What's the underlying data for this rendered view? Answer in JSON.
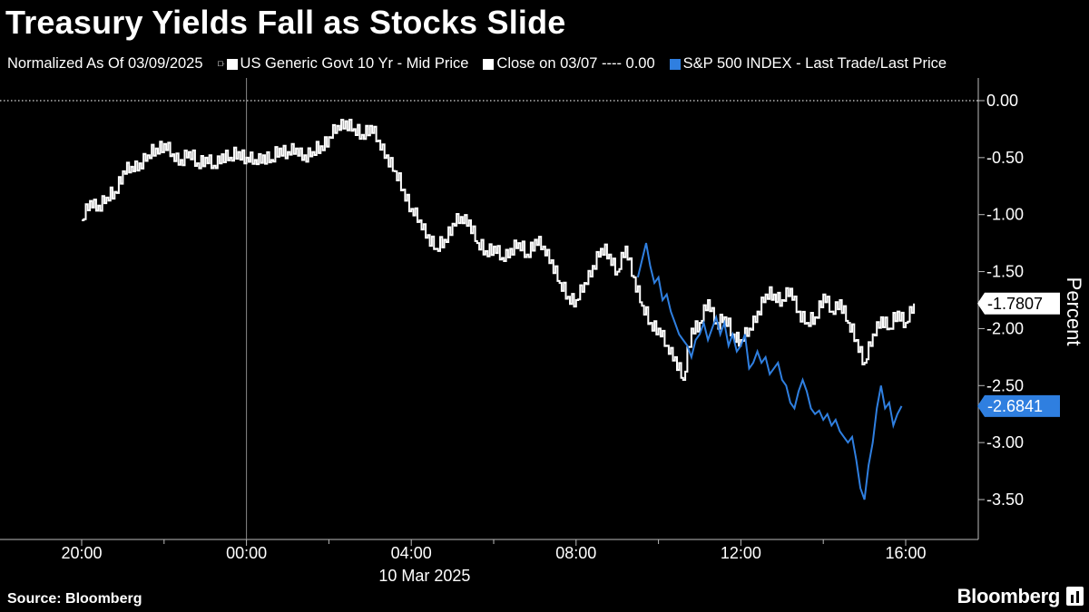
{
  "title": "Treasury Yields Fall as Stocks Slide",
  "legend": {
    "normalized": "Normalized As Of 03/09/2025",
    "items": [
      {
        "label": "US Generic Govt 10 Yr - Mid Price",
        "color": "#ffffff"
      },
      {
        "label": "Close on 03/07 ---- 0.00",
        "color": "#ffffff"
      },
      {
        "label": "S&P 500 INDEX - Last Trade/Last Price",
        "color": "#2f7fe0"
      }
    ]
  },
  "footer": {
    "source": "Source: Bloomberg",
    "brand": "Bloomberg"
  },
  "chart_data": {
    "type": "line",
    "y_axis_label": "Percent",
    "y_axis_side": "right",
    "ylim": [
      -3.85,
      0.2
    ],
    "y_ticks": [
      0.0,
      -0.5,
      -1.0,
      -1.5,
      -2.0,
      -2.5,
      -3.0,
      -3.5
    ],
    "y_tick_labels": [
      "0.00",
      "-0.50",
      "-1.00",
      "-1.50",
      "-2.00",
      "-2.50",
      "-3.00",
      "-3.50"
    ],
    "xlim": [
      -4.0,
      17.0
    ],
    "x_ticks": [
      -4,
      0,
      4,
      8,
      12,
      16
    ],
    "x_tick_labels": [
      "20:00",
      "00:00",
      "04:00",
      "08:00",
      "12:00",
      "16:00"
    ],
    "x_minor_ticks": [
      -2,
      2,
      6,
      10,
      14
    ],
    "x_date_label": "10 Mar 2025",
    "date_label_at": 4.5,
    "vertical_gridline_at": 0,
    "reference_line": {
      "label": "Close on 03/07",
      "value": 0.0
    },
    "series": [
      {
        "name": "US Generic Govt 10 Yr - Mid Price",
        "color": "#ffffff",
        "style": "step",
        "last_value_label": "-1.7807",
        "x": [
          -4.0,
          -3.8,
          -3.6,
          -3.4,
          -3.2,
          -3.0,
          -2.8,
          -2.6,
          -2.4,
          -2.2,
          -2.0,
          -1.8,
          -1.6,
          -1.4,
          -1.2,
          -1.0,
          -0.8,
          -0.6,
          -0.4,
          -0.2,
          0.0,
          0.2,
          0.4,
          0.6,
          0.8,
          1.0,
          1.2,
          1.4,
          1.6,
          1.8,
          2.0,
          2.2,
          2.4,
          2.6,
          2.8,
          3.0,
          3.2,
          3.4,
          3.6,
          3.8,
          4.0,
          4.2,
          4.4,
          4.6,
          4.8,
          5.0,
          5.2,
          5.4,
          5.6,
          5.8,
          6.0,
          6.2,
          6.4,
          6.6,
          6.8,
          7.0,
          7.2,
          7.4,
          7.6,
          7.8,
          8.0,
          8.2,
          8.4,
          8.6,
          8.8,
          9.0,
          9.2,
          9.4,
          9.6,
          9.8,
          10.0,
          10.2,
          10.4,
          10.6,
          10.8,
          11.0,
          11.2,
          11.4,
          11.6,
          11.8,
          12.0,
          12.2,
          12.4,
          12.6,
          12.8,
          13.0,
          13.2,
          13.4,
          13.6,
          13.8,
          14.0,
          14.2,
          14.4,
          14.6,
          14.8,
          15.0,
          15.2,
          15.4,
          15.6,
          15.8,
          16.0,
          16.2
        ],
        "y": [
          -1.05,
          -0.88,
          -0.92,
          -0.85,
          -0.8,
          -0.62,
          -0.58,
          -0.55,
          -0.48,
          -0.42,
          -0.38,
          -0.47,
          -0.52,
          -0.45,
          -0.55,
          -0.5,
          -0.57,
          -0.47,
          -0.5,
          -0.45,
          -0.5,
          -0.52,
          -0.48,
          -0.52,
          -0.42,
          -0.45,
          -0.42,
          -0.48,
          -0.45,
          -0.4,
          -0.32,
          -0.22,
          -0.18,
          -0.25,
          -0.3,
          -0.22,
          -0.35,
          -0.48,
          -0.62,
          -0.78,
          -0.95,
          -1.05,
          -1.18,
          -1.3,
          -1.22,
          -1.08,
          -1.02,
          -1.05,
          -1.25,
          -1.32,
          -1.28,
          -1.38,
          -1.3,
          -1.25,
          -1.35,
          -1.22,
          -1.28,
          -1.4,
          -1.6,
          -1.72,
          -1.75,
          -1.6,
          -1.45,
          -1.3,
          -1.35,
          -1.5,
          -1.28,
          -1.55,
          -1.8,
          -1.95,
          -2.0,
          -2.15,
          -2.25,
          -2.45,
          -2.0,
          -1.95,
          -1.75,
          -1.95,
          -1.9,
          -2.05,
          -2.1,
          -2.0,
          -1.85,
          -1.7,
          -1.7,
          -1.75,
          -1.65,
          -1.85,
          -1.95,
          -1.9,
          -1.7,
          -1.85,
          -1.75,
          -1.95,
          -2.1,
          -2.3,
          -2.05,
          -1.9,
          -2.0,
          -1.85,
          -1.95,
          -1.78
        ]
      },
      {
        "name": "S&P 500 INDEX - Last Trade/Last Price",
        "color": "#2f7fe0",
        "style": "line",
        "last_value_label": "-2.6841",
        "x": [
          9.5,
          9.6,
          9.7,
          9.8,
          9.9,
          10.0,
          10.1,
          10.2,
          10.3,
          10.4,
          10.5,
          10.6,
          10.7,
          10.8,
          10.9,
          11.0,
          11.1,
          11.2,
          11.3,
          11.4,
          11.5,
          11.6,
          11.7,
          11.8,
          11.9,
          12.0,
          12.1,
          12.2,
          12.3,
          12.4,
          12.5,
          12.6,
          12.7,
          12.8,
          12.9,
          13.0,
          13.1,
          13.2,
          13.3,
          13.4,
          13.5,
          13.6,
          13.7,
          13.8,
          13.9,
          14.0,
          14.1,
          14.2,
          14.3,
          14.4,
          14.5,
          14.6,
          14.7,
          14.8,
          14.9,
          15.0,
          15.1,
          15.2,
          15.3,
          15.4,
          15.5,
          15.6,
          15.7,
          15.8,
          15.9
        ],
        "y": [
          -1.55,
          -1.4,
          -1.25,
          -1.45,
          -1.6,
          -1.55,
          -1.75,
          -1.7,
          -1.85,
          -1.95,
          -2.05,
          -2.1,
          -2.15,
          -2.25,
          -2.1,
          -2.05,
          -1.95,
          -2.1,
          -2.0,
          -1.9,
          -2.05,
          -1.95,
          -2.15,
          -2.05,
          -2.2,
          -2.15,
          -2.05,
          -2.35,
          -2.3,
          -2.2,
          -2.3,
          -2.25,
          -2.4,
          -2.35,
          -2.3,
          -2.45,
          -2.5,
          -2.65,
          -2.7,
          -2.55,
          -2.45,
          -2.55,
          -2.7,
          -2.75,
          -2.72,
          -2.8,
          -2.75,
          -2.85,
          -2.8,
          -2.9,
          -2.95,
          -3.0,
          -2.95,
          -3.15,
          -3.4,
          -3.5,
          -3.2,
          -3.0,
          -2.7,
          -2.5,
          -2.7,
          -2.65,
          -2.85,
          -2.75,
          -2.68
        ]
      }
    ]
  }
}
